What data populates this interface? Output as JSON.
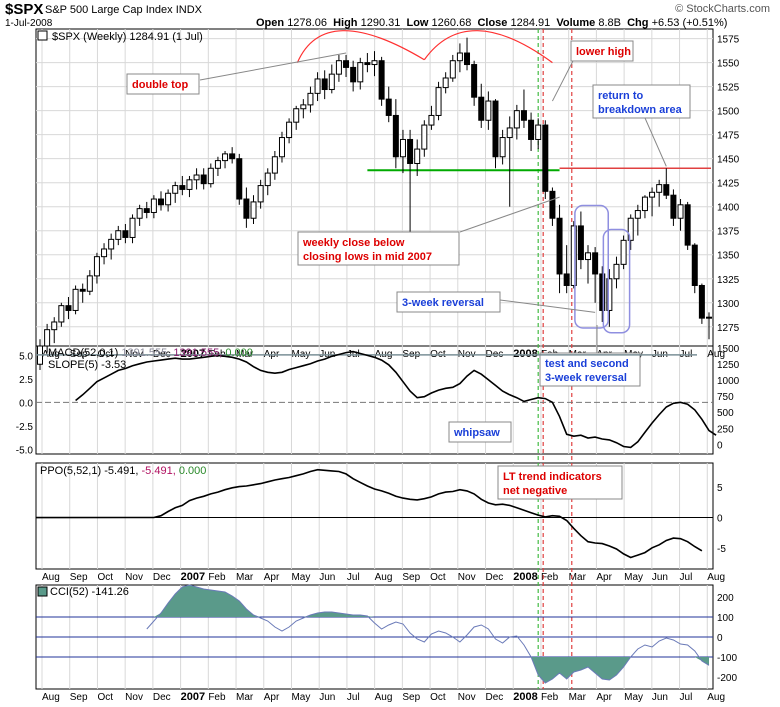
{
  "header": {
    "symbol": "$SPX",
    "name": "S&P 500 Large Cap Index",
    "exchange": "INDX",
    "date": "1-Jul-2008",
    "open_label": "Open",
    "open": "1278.06",
    "high_label": "High",
    "high": "1290.31",
    "low_label": "Low",
    "low": "1260.68",
    "close_label": "Close",
    "close": "1284.91",
    "volume_label": "Volume",
    "volume": "8.8B",
    "change_label": "Chg",
    "change": "+6.53 (+0.51%)",
    "copyright": "© StockCharts.com"
  },
  "colors": {
    "up": "#ffffff",
    "down": "#000000",
    "support_line": "#00aa00",
    "resistance_line": "#e04040",
    "double_top_arc": "#ff3030",
    "annotation_red_text": "#dd0000",
    "annotation_blue_text": "#1a3fd8",
    "cci_fill": "#5a9a8a",
    "grid": "#d8d8d8",
    "macd_line": "#7a8f96",
    "vline_green": "#44bb44",
    "vline_red": "#e04040"
  },
  "panels": {
    "price": {
      "legend": "$SPX (Weekly) 1284.91 (1 Jul)",
      "yticks": [
        1275,
        1300,
        1325,
        1350,
        1375,
        1400,
        1425,
        1450,
        1475,
        1500,
        1525,
        1550,
        1575
      ]
    },
    "macd": {
      "legend_macd_prefix": "MACD(52,0,1)",
      "legend_macd_values": [
        " 1391.555,",
        " 1391.555,",
        " 0.000"
      ],
      "legend_slope": "SLOPE(5) -3.53",
      "left_ticks": [
        "5.0",
        "2.5",
        "0.0",
        "-2.5",
        "-5.0"
      ],
      "right_ticks": [
        "1500",
        "1250",
        "1000",
        "750",
        "500",
        "250",
        "0"
      ]
    },
    "ppo": {
      "legend_prefix": "PPO(5,52,1)",
      "legend_values": [
        " -5.491,",
        " -5.491,",
        " 0.000"
      ],
      "right_ticks": [
        "5",
        "0",
        "-5"
      ]
    },
    "cci": {
      "legend": "CCI(52) -141.26",
      "right_ticks": [
        "200",
        "100",
        "0",
        "-100",
        "-200"
      ]
    }
  },
  "xaxis": {
    "labels": [
      "Aug",
      "Sep",
      "Oct",
      "Nov",
      "Dec",
      "2007",
      "Feb",
      "Mar",
      "Apr",
      "May",
      "Jun",
      "Jul",
      "Aug",
      "Sep",
      "Oct",
      "Nov",
      "Dec",
      "2008",
      "Feb",
      "Mar",
      "Apr",
      "May",
      "Jun",
      "Jul",
      "Aug"
    ]
  },
  "annotations": {
    "double_top": "double top",
    "lower_high": "lower high",
    "return_line1": "return to",
    "return_line2": "breakdown area",
    "weekly_close_line1": "weekly close below",
    "weekly_close_line2": "closing lows in mid 2007",
    "three_week": "3-week reversal",
    "test_line1": "test and second",
    "test_line2": "3-week reversal",
    "whipsaw": "whipsaw",
    "lt_line1": "LT trend indicators",
    "lt_line2": "net negative"
  },
  "chart_data": {
    "type": "candlestick",
    "title": "$SPX (Weekly) 1284.91 (1 Jul)",
    "period": "weekly",
    "x_start": "2006-07-21",
    "price_ylim": [
      1255,
      1585
    ],
    "ohlc": [
      [
        1236,
        1262,
        1230,
        1255
      ],
      [
        1255,
        1278,
        1248,
        1272
      ],
      [
        1272,
        1285,
        1258,
        1280
      ],
      [
        1280,
        1300,
        1275,
        1297
      ],
      [
        1297,
        1306,
        1283,
        1292
      ],
      [
        1292,
        1318,
        1288,
        1314
      ],
      [
        1314,
        1320,
        1300,
        1312
      ],
      [
        1312,
        1334,
        1308,
        1328
      ],
      [
        1328,
        1352,
        1320,
        1348
      ],
      [
        1348,
        1362,
        1340,
        1356
      ],
      [
        1356,
        1372,
        1345,
        1366
      ],
      [
        1366,
        1380,
        1360,
        1375
      ],
      [
        1375,
        1382,
        1362,
        1368
      ],
      [
        1368,
        1392,
        1362,
        1388
      ],
      [
        1388,
        1402,
        1380,
        1398
      ],
      [
        1398,
        1405,
        1388,
        1394
      ],
      [
        1394,
        1412,
        1388,
        1408
      ],
      [
        1408,
        1416,
        1396,
        1402
      ],
      [
        1402,
        1418,
        1395,
        1414
      ],
      [
        1414,
        1426,
        1404,
        1422
      ],
      [
        1422,
        1432,
        1412,
        1418
      ],
      [
        1418,
        1432,
        1410,
        1428
      ],
      [
        1428,
        1440,
        1418,
        1433
      ],
      [
        1433,
        1440,
        1418,
        1424
      ],
      [
        1424,
        1445,
        1420,
        1440
      ],
      [
        1440,
        1452,
        1432,
        1448
      ],
      [
        1448,
        1458,
        1440,
        1455
      ],
      [
        1455,
        1462,
        1445,
        1450
      ],
      [
        1450,
        1455,
        1402,
        1408
      ],
      [
        1408,
        1420,
        1378,
        1388
      ],
      [
        1388,
        1412,
        1382,
        1405
      ],
      [
        1405,
        1428,
        1398,
        1422
      ],
      [
        1422,
        1440,
        1412,
        1435
      ],
      [
        1435,
        1458,
        1428,
        1452
      ],
      [
        1452,
        1478,
        1446,
        1472
      ],
      [
        1472,
        1492,
        1466,
        1488
      ],
      [
        1488,
        1505,
        1480,
        1502
      ],
      [
        1502,
        1512,
        1492,
        1506
      ],
      [
        1506,
        1525,
        1498,
        1518
      ],
      [
        1518,
        1540,
        1510,
        1533
      ],
      [
        1533,
        1542,
        1512,
        1522
      ],
      [
        1522,
        1548,
        1518,
        1538
      ],
      [
        1538,
        1558,
        1530,
        1552
      ],
      [
        1552,
        1558,
        1535,
        1545
      ],
      [
        1545,
        1552,
        1520,
        1530
      ],
      [
        1530,
        1555,
        1522,
        1550
      ],
      [
        1550,
        1560,
        1540,
        1548
      ],
      [
        1548,
        1562,
        1536,
        1552
      ],
      [
        1552,
        1556,
        1505,
        1512
      ],
      [
        1512,
        1525,
        1488,
        1495
      ],
      [
        1495,
        1512,
        1440,
        1452
      ],
      [
        1452,
        1480,
        1435,
        1470
      ],
      [
        1470,
        1480,
        1370,
        1445
      ],
      [
        1445,
        1470,
        1432,
        1460
      ],
      [
        1460,
        1490,
        1452,
        1485
      ],
      [
        1485,
        1505,
        1480,
        1495
      ],
      [
        1495,
        1530,
        1490,
        1524
      ],
      [
        1524,
        1540,
        1518,
        1534
      ],
      [
        1534,
        1558,
        1530,
        1552
      ],
      [
        1552,
        1570,
        1540,
        1560
      ],
      [
        1560,
        1576,
        1542,
        1548
      ],
      [
        1548,
        1552,
        1505,
        1514
      ],
      [
        1514,
        1528,
        1482,
        1490
      ],
      [
        1490,
        1520,
        1480,
        1510
      ],
      [
        1510,
        1512,
        1440,
        1452
      ],
      [
        1452,
        1480,
        1444,
        1472
      ],
      [
        1472,
        1494,
        1400,
        1482
      ],
      [
        1482,
        1506,
        1470,
        1500
      ],
      [
        1500,
        1522,
        1482,
        1490
      ],
      [
        1490,
        1498,
        1458,
        1470
      ],
      [
        1470,
        1492,
        1460,
        1485
      ],
      [
        1485,
        1490,
        1408,
        1416
      ],
      [
        1416,
        1420,
        1380,
        1388
      ],
      [
        1388,
        1402,
        1310,
        1330
      ],
      [
        1330,
        1360,
        1310,
        1318
      ],
      [
        1318,
        1385,
        1315,
        1380
      ],
      [
        1380,
        1395,
        1335,
        1345
      ],
      [
        1345,
        1360,
        1320,
        1352
      ],
      [
        1352,
        1358,
        1300,
        1330
      ],
      [
        1330,
        1338,
        1280,
        1292
      ],
      [
        1292,
        1335,
        1275,
        1325
      ],
      [
        1325,
        1348,
        1315,
        1340
      ],
      [
        1340,
        1370,
        1335,
        1365
      ],
      [
        1365,
        1392,
        1355,
        1388
      ],
      [
        1388,
        1402,
        1370,
        1396
      ],
      [
        1396,
        1412,
        1388,
        1410
      ],
      [
        1410,
        1420,
        1390,
        1415
      ],
      [
        1415,
        1428,
        1400,
        1423
      ],
      [
        1423,
        1440,
        1408,
        1412
      ],
      [
        1412,
        1418,
        1380,
        1388
      ],
      [
        1388,
        1408,
        1375,
        1402
      ],
      [
        1402,
        1405,
        1355,
        1360
      ],
      [
        1360,
        1362,
        1310,
        1318
      ],
      [
        1318,
        1320,
        1278,
        1284
      ],
      [
        1284,
        1290,
        1262,
        1285
      ]
    ],
    "support_level": 1438,
    "resistance_level": 1440,
    "macd_line": 1391.555,
    "slope_ylim": [
      -5.5,
      6.0
    ],
    "slope": [
      0.2,
      0.8,
      1.5,
      2.2,
      2.6,
      3.0,
      3.4,
      3.6,
      3.9,
      4.1,
      4.3,
      4.4,
      4.5,
      4.6,
      4.7,
      4.6,
      4.6,
      4.7,
      4.8,
      4.9,
      5.0,
      4.9,
      4.8,
      4.6,
      4.3,
      3.8,
      3.4,
      3.2,
      3.1,
      3.2,
      3.5,
      3.7,
      3.9,
      4.1,
      4.4,
      4.6,
      4.9,
      5.1,
      5.3,
      5.4,
      5.2,
      5.0,
      4.8,
      4.5,
      4.0,
      3.2,
      2.2,
      1.2,
      0.5,
      0.6,
      1.0,
      1.3,
      1.5,
      1.6,
      2.0,
      2.8,
      3.4,
      3.0,
      2.4,
      1.8,
      1.2,
      0.8,
      0.5,
      0.1,
      0.3,
      0.5,
      0.4,
      0.0,
      -1.5,
      -3.4,
      -3.6,
      -3.5,
      -3.8,
      -3.7,
      -3.9,
      -4.0,
      -4.3,
      -4.7,
      -4.8,
      -4.2,
      -3.2,
      -2.2,
      -1.3,
      -0.5,
      -0.1,
      0.0,
      -0.2,
      -0.8,
      -1.8,
      -3.0,
      -3.5
    ],
    "ppo_ylim": [
      -8.5,
      9.0
    ],
    "ppo": [
      0.0,
      0.3,
      1.0,
      1.6,
      2.0,
      2.8,
      3.2,
      3.5,
      3.9,
      4.2,
      4.6,
      4.9,
      5.1,
      5.2,
      5.4,
      5.6,
      5.9,
      6.2,
      6.4,
      6.6,
      6.9,
      7.2,
      7.6,
      7.9,
      7.8,
      7.7,
      7.6,
      7.2,
      6.4,
      5.8,
      5.2,
      4.7,
      4.4,
      4.0,
      3.5,
      3.2,
      3.0,
      2.9,
      3.1,
      3.4,
      3.9,
      4.2,
      4.3,
      4.6,
      4.4,
      3.9,
      3.0,
      2.4,
      2.1,
      2.2,
      2.0,
      1.6,
      1.2,
      0.8,
      0.4,
      0.1,
      0.3,
      0.2,
      -0.5,
      -1.8,
      -3.0,
      -4.0,
      -4.2,
      -4.3,
      -4.7,
      -5.2,
      -6.0,
      -6.6,
      -6.2,
      -5.8,
      -5.0,
      -4.5,
      -3.8,
      -3.4,
      -3.5,
      -4.0,
      -4.8,
      -5.491
    ],
    "cci_ylim": [
      -260,
      260
    ],
    "cci": [
      40,
      80,
      120,
      170,
      215,
      250,
      260,
      250,
      240,
      235,
      230,
      225,
      205,
      180,
      140,
      110,
      95,
      80,
      50,
      30,
      50,
      80,
      95,
      110,
      120,
      125,
      125,
      120,
      115,
      110,
      110,
      105,
      70,
      40,
      60,
      75,
      65,
      20,
      -10,
      -25,
      15,
      30,
      20,
      0,
      -25,
      10,
      50,
      60,
      40,
      -10,
      -30,
      0,
      5,
      -40,
      -100,
      -190,
      -230,
      -210,
      -180,
      -210,
      -175,
      -165,
      -150,
      -180,
      -210,
      -215,
      -190,
      -150,
      -100,
      -60,
      -40,
      -50,
      -20,
      -5,
      -15,
      -35,
      -40,
      -70,
      -120,
      -141.26
    ],
    "reversal_markers": [
      {
        "label": "3-week reversal",
        "from_week": 76,
        "to_week": 79
      },
      {
        "label": "test and second 3-week reversal",
        "from_week": 80,
        "to_week": 82
      }
    ]
  }
}
